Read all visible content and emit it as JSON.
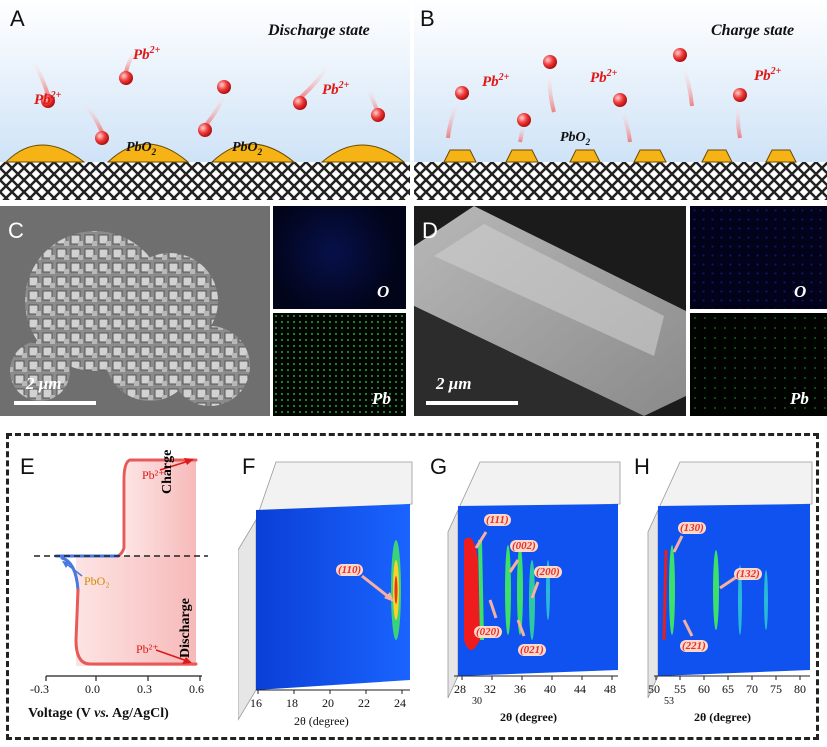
{
  "panelA": {
    "letter": "A",
    "state": "Discharge state",
    "ion": "Pb",
    "charge": "2+",
    "oxide": "PbO",
    "oxide_sub": "2"
  },
  "panelB": {
    "letter": "B",
    "state": "Charge state",
    "ion": "Pb",
    "charge": "2+",
    "oxide": "PbO",
    "oxide_sub": "2"
  },
  "panelC": {
    "letter": "C",
    "scale": "2 μm",
    "map1": "O",
    "map2": "Pb"
  },
  "panelD": {
    "letter": "D",
    "scale": "2 μm",
    "map1": "O",
    "map2": "Pb"
  },
  "panelE": {
    "letter": "E",
    "charge": "Charge",
    "discharge": "Discharge",
    "ann_top": "Pb²⁺",
    "ann_mid": "PbO₂",
    "ann_bot": "Pb²⁺",
    "xticks": [
      "-0.3",
      "0.0",
      "0.3",
      "0.6"
    ],
    "xlabel_a": "Voltage (V ",
    "xlabel_b": "vs.",
    "xlabel_c": " Ag/AgCl)"
  },
  "panelF": {
    "letter": "F",
    "peak": "(110)",
    "xticks": [
      "16",
      "18",
      "20",
      "22",
      "24"
    ],
    "xlabel": "2θ (degree)"
  },
  "panelG": {
    "letter": "G",
    "peaks": [
      "(111)",
      "(002)",
      "(200)",
      "(020)",
      "(021)"
    ],
    "xticks": [
      "28",
      "32",
      "36",
      "40",
      "44",
      "48"
    ],
    "xlabel_extra": [
      "30"
    ],
    "xlabel": "2θ (degree)"
  },
  "panelH": {
    "letter": "H",
    "peaks": [
      "(130)",
      "(132)",
      "(221)"
    ],
    "xticks": [
      "50",
      "55",
      "60",
      "65",
      "70",
      "75",
      "80"
    ],
    "xlabel_extra": [
      "53"
    ],
    "xlabel": "2θ (degree)"
  },
  "chart_data": [
    {
      "type": "line",
      "title": "",
      "xlabel": "Voltage (V vs. Ag/AgCl)",
      "ylabel": "",
      "xlim": [
        -0.4,
        0.6
      ],
      "series": [
        {
          "name": "",
          "x": [
            0.58,
            0.22,
            0.19,
            0.18,
            -0.15,
            -0.1,
            -0.12,
            -0.18,
            0.58
          ],
          "y": [
            1.0,
            1.0,
            0.9,
            0.5,
            0.5,
            0.45,
            0.3,
            0.0,
            0.0
          ]
        }
      ]
    },
    {
      "type": "heatmap",
      "xlabel": "2θ (degree)",
      "xlim": [
        16,
        24
      ],
      "annotations": [
        "(110)"
      ]
    },
    {
      "type": "heatmap",
      "xlabel": "2θ (degree)",
      "xlim": [
        28,
        48
      ],
      "annotations": [
        "(111)",
        "(002)",
        "(200)",
        "(020)",
        "(021)"
      ]
    },
    {
      "type": "heatmap",
      "xlabel": "2θ (degree)",
      "xlim": [
        50,
        80
      ],
      "annotations": [
        "(130)",
        "(132)",
        "(221)"
      ]
    }
  ]
}
